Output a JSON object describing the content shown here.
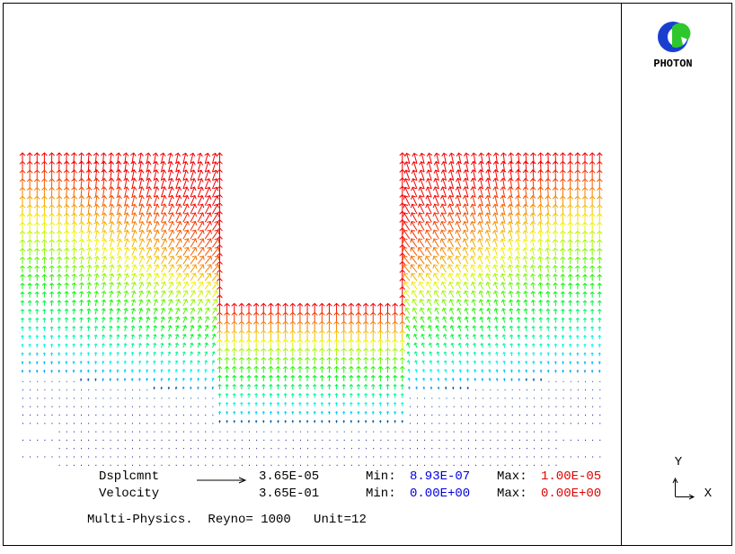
{
  "logo": {
    "label": "PHOTON"
  },
  "legend": {
    "rows": [
      {
        "name": "Dsplcmnt",
        "scale": "3.65E-05",
        "min_label": "Min:",
        "min": "8.93E-07",
        "max_label": "Max:",
        "max": "1.00E-05"
      },
      {
        "name": "Velocity",
        "scale": "3.65E-01",
        "min_label": "Min:",
        "min": "0.00E+00",
        "max_label": "Max:",
        "max": "0.00E+00"
      }
    ],
    "footer": "Multi-Physics.  Reyno= 1000   Unit=12"
  },
  "axes": {
    "y": "Y",
    "x": "X"
  }
}
